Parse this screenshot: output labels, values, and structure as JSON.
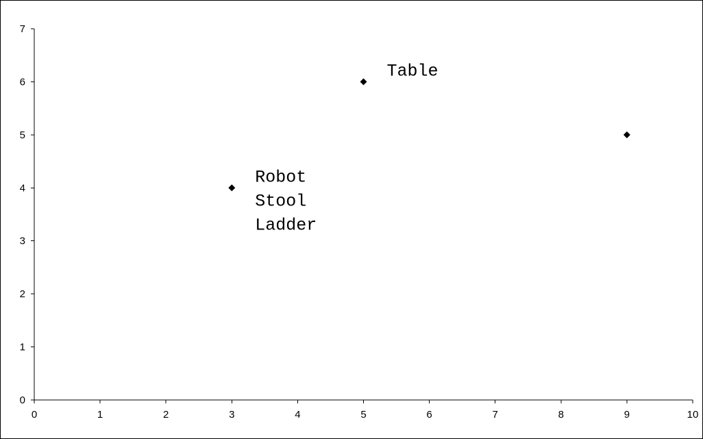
{
  "chart_data": {
    "type": "scatter",
    "title": "",
    "xlabel": "",
    "ylabel": "",
    "xlim": [
      0,
      10
    ],
    "ylim": [
      0,
      7
    ],
    "x_ticks": [
      "0",
      "1",
      "2",
      "3",
      "4",
      "5",
      "6",
      "7",
      "8",
      "9",
      "10"
    ],
    "y_ticks": [
      "0",
      "1",
      "2",
      "3",
      "4",
      "5",
      "6",
      "7"
    ],
    "grid": false,
    "legend": "none",
    "marker": "diamond",
    "colors": {
      "marker": "#000000",
      "axis": "#000000",
      "background": "#ffffff"
    },
    "points": [
      {
        "x": 3,
        "y": 4
      },
      {
        "x": 5,
        "y": 6
      },
      {
        "x": 9,
        "y": 5
      }
    ],
    "annotations": [
      {
        "point": 0,
        "lines": [
          "Robot",
          "Stool",
          "Ladder"
        ]
      },
      {
        "point": 1,
        "lines": [
          "Table"
        ]
      }
    ]
  }
}
